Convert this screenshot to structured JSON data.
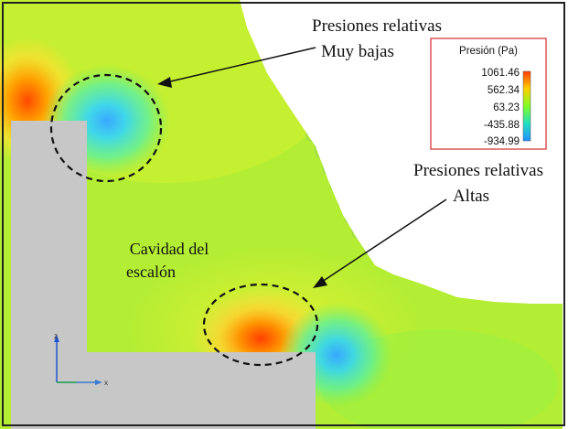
{
  "annotations": {
    "low_pressure_line1": "Presiones relativas",
    "low_pressure_line2": "Muy bajas",
    "high_pressure_line1": "Presiones relativas",
    "high_pressure_line2": "Altas",
    "cavity_line1": "Cavidad del",
    "cavity_line2": "escalón"
  },
  "legend": {
    "title": "Presión (Pa)",
    "ticks": [
      "1061.46",
      "562.34",
      "63.23",
      "-435.88",
      "-934.99"
    ],
    "colors": [
      "#ff3a00",
      "#ffd000",
      "#80ff20",
      "#20e0c0",
      "#2090ff"
    ]
  },
  "axes_triad": {
    "z_label": "z",
    "x_label": "x"
  },
  "colors": {
    "field_base": "#b8f030",
    "solid_gray": "#c7c7c7",
    "legend_border": "#d83a3a"
  }
}
